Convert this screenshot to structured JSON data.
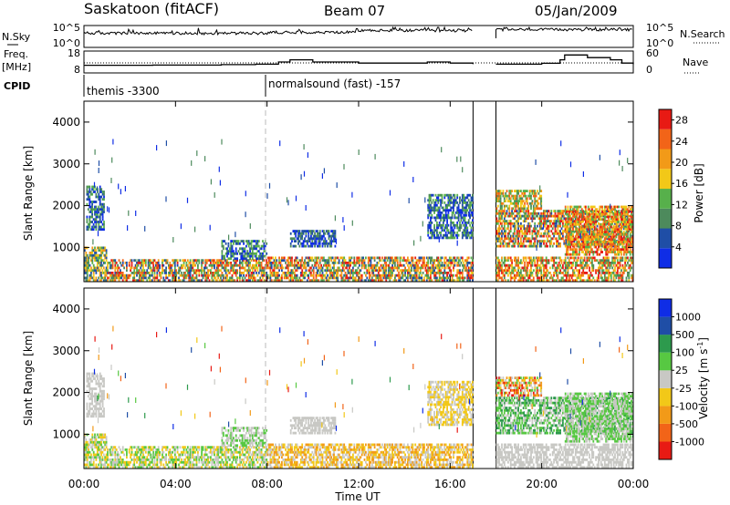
{
  "header": {
    "station": "Saskatoon (fitACF)",
    "beam": "Beam 07",
    "date": "05/Jan/2009"
  },
  "nsky_panel": {
    "label": "N.Sky",
    "left_ticks": [
      "10^5",
      "10^0"
    ],
    "right_ticks": [
      "10^5",
      "10^0"
    ],
    "right_label": "N.Search"
  },
  "freq_panel": {
    "label_line1": "Freq.",
    "label_line2": "[MHz]",
    "left_ticks": [
      "18",
      "8"
    ],
    "right_ticks": [
      "60",
      "0"
    ],
    "right_label": "Nave"
  },
  "cpid_panel": {
    "label": "CPID",
    "modes": [
      {
        "name": "themis -3300",
        "start_hour": 0
      },
      {
        "name": "normalsound (fast) -157",
        "start_hour": 8
      }
    ]
  },
  "colors": {
    "power": [
      "#0f2de6",
      "#1f4ea6",
      "#4d8a5c",
      "#57b04b",
      "#f2c818",
      "#f29a18",
      "#f26418",
      "#e81a14"
    ],
    "velocity": [
      "#e81a14",
      "#f26418",
      "#f29a18",
      "#f2c818",
      "#c8c8c4",
      "#57c842",
      "#2d9a4d",
      "#1f4ea6",
      "#0f2de6"
    ],
    "gap": "#cfcfcf"
  },
  "chart_data": [
    {
      "type": "line",
      "name": "nsky",
      "x_range": [
        0,
        24
      ],
      "y_scale": "log",
      "y_ticks": [
        "10^0",
        "10^5"
      ],
      "gap_hours": [
        17.0,
        18.0
      ]
    },
    {
      "type": "line",
      "name": "freq",
      "ylim": [
        8,
        18
      ],
      "series": [
        {
          "x": [
            0,
            3,
            6,
            7.5,
            8.5,
            9,
            10,
            11,
            12,
            14,
            15,
            16,
            17
          ],
          "y": [
            11.5,
            11.6,
            11.8,
            12,
            13,
            14,
            13,
            13,
            12.5,
            12.5,
            13,
            12.5,
            12
          ]
        },
        {
          "x": [
            18,
            20,
            20.8,
            21,
            22,
            23,
            23.5,
            24
          ],
          "y": [
            12,
            12.4,
            14,
            16.2,
            15,
            14,
            12.5,
            12
          ]
        }
      ]
    },
    {
      "type": "heatmap",
      "name": "power",
      "xlabel": "",
      "ylabel": "Slant Range [km]",
      "x_range": [
        0,
        24
      ],
      "y_range": [
        180,
        4500
      ],
      "y_ticks": [
        1000,
        2000,
        3000,
        4000
      ],
      "colorbar": {
        "title": "Power [dB]",
        "ticks": [
          4,
          8,
          12,
          16,
          20,
          24,
          28
        ],
        "range": [
          0,
          30
        ]
      },
      "gap_hours": [
        17.0,
        18.0
      ]
    },
    {
      "type": "heatmap",
      "name": "velocity",
      "xlabel": "Time UT",
      "ylabel": "Slant Range [km]",
      "x_range": [
        0,
        24
      ],
      "x_ticks": [
        "00:00",
        "04:00",
        "08:00",
        "12:00",
        "16:00",
        "20:00",
        "00:00"
      ],
      "y_range": [
        180,
        4500
      ],
      "y_ticks": [
        1000,
        2000,
        3000,
        4000
      ],
      "colorbar": {
        "title": "Velocity [m s^-1]",
        "ticks": [
          -1000,
          -500,
          -100,
          -25,
          25,
          100,
          500,
          1000
        ]
      },
      "gap_hours": [
        17.0,
        18.0
      ]
    }
  ]
}
